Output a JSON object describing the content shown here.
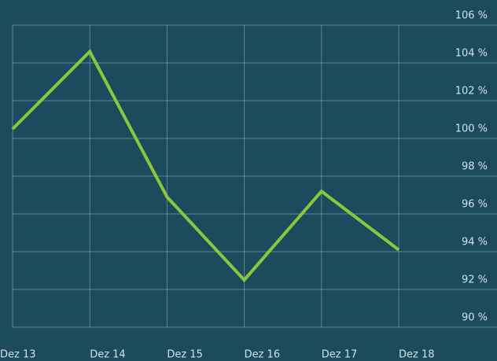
{
  "chart_data": {
    "type": "line",
    "categories": [
      "Dez 13",
      "Dez 14",
      "Dez 15",
      "Dez 16",
      "Dez 17",
      "Dez 18"
    ],
    "series": [
      {
        "color": "#8cc63e",
        "values": [
          100.5,
          104.6,
          96.9,
          92.5,
          97.2,
          94.1
        ]
      }
    ],
    "ylim": [
      90,
      106
    ],
    "yticks": [
      {
        "value": 90,
        "label": "90 %"
      },
      {
        "value": 92,
        "label": "92 %"
      },
      {
        "value": 94,
        "label": "94 %"
      },
      {
        "value": 96,
        "label": "96 %"
      },
      {
        "value": 98,
        "label": "98 %"
      },
      {
        "value": 100,
        "label": "100 %"
      },
      {
        "value": 102,
        "label": "102 %"
      },
      {
        "value": 104,
        "label": "104 %"
      },
      {
        "value": 106,
        "label": "106 %"
      }
    ],
    "grid": true
  }
}
